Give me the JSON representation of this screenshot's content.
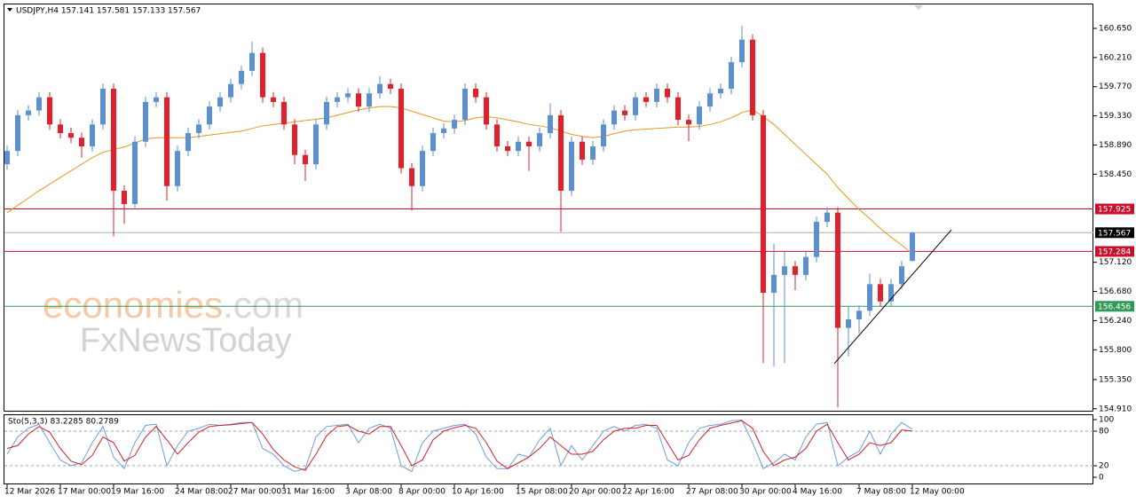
{
  "chart_data": {
    "type": "candlestick",
    "header": "USDJPY,H4  157.141 157.581 157.133 157.567",
    "categories": [
      "12 Mar 2026",
      null,
      null,
      null,
      null,
      "17 Mar 00:00",
      null,
      null,
      null,
      null,
      "19 Mar 16:00",
      null,
      null,
      null,
      null,
      null,
      "24 Mar 08:00",
      null,
      null,
      null,
      null,
      "27 Mar 00:00",
      null,
      null,
      null,
      null,
      "31 Mar 16:00",
      null,
      null,
      null,
      null,
      null,
      "3 Apr 08:00",
      null,
      null,
      null,
      null,
      "8 Apr 00:00",
      null,
      null,
      null,
      null,
      "10 Apr 16:00",
      null,
      null,
      null,
      null,
      null,
      "15 Apr 08:00",
      null,
      null,
      null,
      null,
      "20 Apr 00:00",
      null,
      null,
      null,
      null,
      "22 Apr 16:00",
      null,
      null,
      null,
      null,
      null,
      "27 Apr 08:00",
      null,
      null,
      null,
      null,
      "30 Apr 00:00",
      null,
      null,
      null,
      null,
      "4 May 16:00",
      null,
      null,
      null,
      null,
      null,
      "7 May 08:00",
      null,
      null,
      null,
      null,
      "12 May 00:00"
    ],
    "open": [
      158.6,
      158.8,
      159.34,
      159.41,
      159.61,
      159.2,
      159.07,
      159.0,
      158.87,
      159.2,
      159.74,
      158.2,
      158.0,
      158.94,
      159.54,
      159.61,
      158.27,
      158.8,
      159.07,
      159.2,
      159.47,
      159.61,
      159.81,
      160.01,
      160.28,
      159.61,
      159.54,
      159.2,
      158.74,
      158.6,
      159.2,
      159.54,
      159.61,
      159.67,
      159.47,
      159.67,
      159.81,
      159.74,
      158.54,
      158.27,
      158.8,
      159.07,
      159.14,
      159.27,
      159.74,
      159.61,
      159.2,
      158.87,
      158.8,
      158.94,
      158.87,
      159.07,
      159.34,
      158.2,
      158.94,
      158.67,
      158.87,
      159.2,
      159.41,
      159.34,
      159.61,
      159.54,
      159.74,
      159.61,
      159.27,
      159.2,
      159.47,
      159.67,
      159.74,
      160.14,
      160.48,
      159.34,
      156.66,
      156.93,
      157.06,
      156.93,
      157.2,
      157.73,
      157.87,
      156.13,
      156.26,
      156.39,
      156.79,
      156.53,
      156.79,
      157.141
    ],
    "high": [
      158.88,
      159.42,
      159.49,
      159.69,
      159.69,
      159.28,
      159.15,
      159.08,
      159.28,
      159.82,
      159.82,
      158.28,
      159.02,
      159.62,
      159.69,
      159.69,
      158.88,
      159.15,
      159.28,
      159.55,
      159.69,
      159.89,
      160.09,
      160.45,
      160.36,
      159.69,
      159.62,
      159.28,
      158.82,
      159.28,
      159.62,
      159.69,
      159.75,
      159.75,
      159.75,
      159.93,
      159.89,
      159.82,
      158.62,
      158.88,
      159.15,
      159.22,
      159.35,
      159.82,
      159.82,
      159.69,
      159.28,
      158.95,
      159.02,
      159.02,
      159.15,
      159.52,
      159.42,
      159.02,
      159.02,
      158.95,
      159.28,
      159.49,
      159.49,
      159.69,
      159.69,
      159.82,
      159.82,
      159.69,
      159.35,
      159.55,
      159.75,
      159.82,
      160.22,
      160.69,
      160.56,
      159.42,
      157.4,
      157.3,
      157.14,
      157.3,
      157.81,
      157.95,
      157.95,
      156.45,
      156.47,
      156.95,
      156.87,
      156.87,
      157.14,
      157.581
    ],
    "low": [
      158.52,
      158.72,
      159.26,
      159.33,
      159.12,
      158.99,
      158.92,
      158.7,
      158.79,
      159.12,
      157.51,
      157.7,
      157.92,
      158.86,
      159.46,
      158.05,
      158.19,
      158.72,
      158.99,
      159.12,
      159.39,
      159.53,
      159.73,
      159.93,
      159.53,
      159.46,
      159.12,
      158.6,
      158.35,
      158.52,
      159.12,
      159.46,
      159.53,
      159.39,
      159.39,
      159.59,
      159.66,
      158.46,
      157.9,
      158.19,
      158.72,
      158.99,
      159.06,
      159.19,
      159.53,
      159.12,
      158.79,
      158.72,
      158.72,
      158.5,
      158.79,
      158.99,
      157.58,
      158.12,
      158.59,
      158.59,
      158.79,
      159.12,
      159.26,
      159.26,
      159.46,
      159.46,
      159.53,
      159.19,
      158.95,
      159.12,
      159.39,
      159.59,
      159.66,
      160.06,
      159.26,
      155.6,
      155.55,
      155.6,
      156.7,
      156.85,
      157.12,
      157.65,
      154.93,
      155.7,
      156.05,
      156.31,
      156.45,
      156.45,
      156.71,
      157.133
    ],
    "close": [
      158.8,
      159.34,
      159.41,
      159.61,
      159.2,
      159.07,
      159.0,
      158.87,
      159.2,
      159.74,
      158.2,
      158.0,
      158.94,
      159.54,
      159.61,
      158.27,
      158.8,
      159.07,
      159.2,
      159.47,
      159.61,
      159.81,
      160.01,
      160.28,
      159.61,
      159.54,
      159.2,
      158.74,
      158.6,
      159.2,
      159.54,
      159.61,
      159.67,
      159.47,
      159.67,
      159.81,
      159.74,
      158.54,
      158.27,
      158.8,
      159.07,
      159.14,
      159.27,
      159.74,
      159.61,
      159.2,
      158.87,
      158.8,
      158.94,
      158.87,
      159.07,
      159.34,
      158.2,
      158.94,
      158.67,
      158.87,
      159.2,
      159.41,
      159.34,
      159.61,
      159.54,
      159.74,
      159.61,
      159.27,
      159.2,
      159.47,
      159.67,
      159.74,
      160.14,
      160.48,
      159.34,
      156.66,
      156.93,
      157.06,
      156.93,
      157.2,
      157.73,
      157.87,
      156.13,
      156.26,
      156.39,
      156.79,
      156.53,
      156.79,
      157.06,
      157.567
    ],
    "colors": {
      "up": "#5b8fd6",
      "down": "#e3202a"
    },
    "ylim": [
      154.88,
      161.025
    ],
    "yticks": [
      {
        "value": 160.65,
        "label": "160.650"
      },
      {
        "value": 160.21,
        "label": "160.210"
      },
      {
        "value": 159.77,
        "label": "159.770"
      },
      {
        "value": 159.33,
        "label": "159.330"
      },
      {
        "value": 158.89,
        "label": "158.890"
      },
      {
        "value": 158.45,
        "label": "158.450"
      },
      {
        "value": 157.12,
        "label": "157.120"
      },
      {
        "value": 156.68,
        "label": "156.680"
      },
      {
        "value": 156.24,
        "label": "156.240"
      },
      {
        "value": 155.8,
        "label": "155.800"
      },
      {
        "value": 155.35,
        "label": "155.350"
      },
      {
        "value": 154.91,
        "label": "154.910"
      }
    ],
    "ma": {
      "color": "#e8961e",
      "values": [
        157.87,
        157.98,
        158.09,
        158.2,
        158.3,
        158.4,
        158.5,
        158.6,
        158.7,
        158.78,
        158.82,
        158.86,
        158.92,
        158.98,
        159.0,
        159.0,
        159.0,
        159.0,
        159.02,
        159.04,
        159.06,
        159.08,
        159.1,
        159.14,
        159.18,
        159.2,
        159.22,
        159.24,
        159.26,
        159.28,
        159.3,
        159.34,
        159.38,
        159.42,
        159.45,
        159.47,
        159.47,
        159.45,
        159.4,
        159.35,
        159.3,
        159.25,
        159.24,
        159.26,
        159.3,
        159.32,
        159.3,
        159.27,
        159.24,
        159.2,
        159.18,
        159.15,
        159.1,
        159.05,
        159.02,
        159.0,
        159.02,
        159.06,
        159.1,
        159.12,
        159.13,
        159.14,
        159.15,
        159.16,
        159.16,
        159.17,
        159.2,
        159.24,
        159.3,
        159.38,
        159.42,
        159.32,
        159.2,
        159.05,
        158.9,
        158.75,
        158.6,
        158.45,
        158.25,
        158.08,
        157.92,
        157.78,
        157.63,
        157.5,
        157.38,
        157.25
      ]
    },
    "levels": [
      {
        "value": 157.925,
        "color": "#c8102e"
      },
      {
        "value": 157.567,
        "color": "#000000"
      },
      {
        "value": 157.284,
        "color": "#c8102e"
      },
      {
        "value": 156.456,
        "color": "#2e9a58"
      }
    ],
    "trendline": {
      "x": [
        77.67,
        88.67
      ],
      "y": [
        155.59,
        157.61
      ],
      "color": "#000000"
    },
    "watermark": {
      "part1": "economies",
      "part2": ".com",
      "part3": "FxNewsToday"
    },
    "indicator": {
      "title": "Sto(5,3,3) 83.2285 80.2789",
      "ylim": [
        0,
        100
      ],
      "yticks": [
        100,
        80,
        20,
        0
      ],
      "levels": [
        80,
        20
      ],
      "series": [
        {
          "color": "#6a9fe0",
          "values": [
            40,
            70,
            85,
            92,
            60,
            30,
            20,
            25,
            60,
            88,
            35,
            15,
            60,
            90,
            92,
            20,
            55,
            80,
            85,
            92,
            90,
            92,
            95,
            95,
            50,
            40,
            20,
            10,
            15,
            70,
            88,
            90,
            92,
            60,
            85,
            92,
            85,
            20,
            10,
            60,
            80,
            85,
            90,
            92,
            75,
            35,
            15,
            15,
            40,
            35,
            65,
            85,
            20,
            55,
            30,
            55,
            80,
            88,
            80,
            90,
            92,
            85,
            30,
            20,
            60,
            85,
            90,
            92,
            98,
            99,
            60,
            15,
            25,
            40,
            30,
            70,
            92,
            95,
            20,
            35,
            45,
            80,
            40,
            75,
            95,
            83.2285
          ]
        },
        {
          "color": "#d0202a",
          "values": [
            50,
            55,
            75,
            88,
            78,
            50,
            28,
            22,
            38,
            70,
            60,
            28,
            38,
            70,
            88,
            65,
            40,
            60,
            78,
            88,
            90,
            91,
            93,
            95,
            75,
            48,
            30,
            18,
            12,
            40,
            72,
            88,
            90,
            80,
            75,
            88,
            88,
            55,
            20,
            30,
            65,
            80,
            86,
            90,
            85,
            60,
            28,
            15,
            25,
            35,
            50,
            70,
            55,
            40,
            40,
            45,
            65,
            80,
            85,
            85,
            90,
            90,
            60,
            30,
            38,
            65,
            85,
            90,
            94,
            98,
            85,
            45,
            20,
            30,
            35,
            50,
            80,
            92,
            60,
            30,
            40,
            60,
            55,
            60,
            82,
            80.2789
          ]
        }
      ]
    }
  }
}
